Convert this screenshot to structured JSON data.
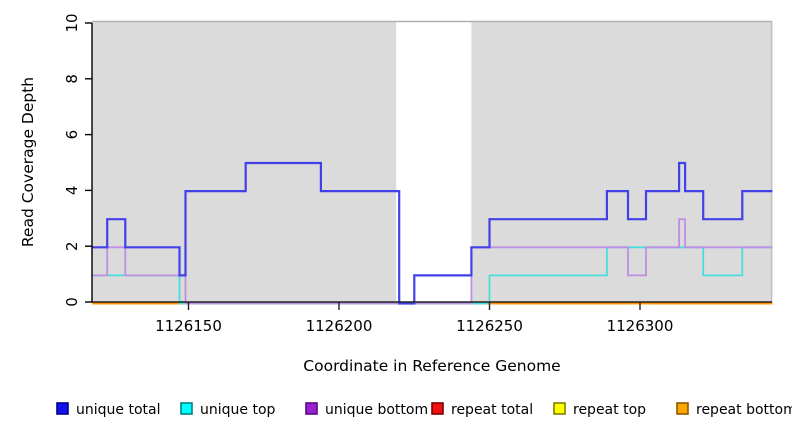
{
  "y_axis": {
    "label": "Read Coverage Depth",
    "ticks": [
      0,
      2,
      4,
      6,
      8,
      10
    ],
    "min": 0,
    "max": 10
  },
  "x_axis": {
    "label": "Coordinate in Reference Genome",
    "ticks": [
      1126150,
      1126200,
      1126250,
      1126300
    ],
    "min": 1126118,
    "max": 1126344
  },
  "legend": {
    "items": [
      {
        "label": "unique total",
        "color": "#1111EE",
        "border": "#000090"
      },
      {
        "label": "unique top",
        "color": "#00FFFF",
        "border": "#008080"
      },
      {
        "label": "unique bottom",
        "color": "#9A1FD0",
        "border": "#570A86"
      },
      {
        "label": "repeat total",
        "color": "#EE1111",
        "border": "#800000"
      },
      {
        "label": "repeat top",
        "color": "#FFFF00",
        "border": "#808000"
      },
      {
        "label": "repeat bottom",
        "color": "#FFA500",
        "border": "#8B5A00"
      }
    ]
  },
  "chart_data": {
    "type": "line",
    "step": true,
    "title": "",
    "xlabel": "Coordinate in Reference Genome",
    "ylabel": "Read Coverage Depth",
    "xlim": [
      1126118,
      1126344
    ],
    "ylim": [
      0,
      10
    ],
    "grid": false,
    "legend_position": "bottom",
    "background_color": "#DBDBDB",
    "background_regions": [
      {
        "from": 1126118,
        "to": 1126219
      },
      {
        "from": 1126244,
        "to": 1126344
      }
    ],
    "gap_region": {
      "from": 1126219,
      "to": 1126244
    },
    "series": [
      {
        "name": "unique total",
        "color_pure": "#1111EE",
        "render_color": "#4340E8",
        "segments": [
          [
            1126118,
            1126123,
            2
          ],
          [
            1126123,
            1126129,
            3
          ],
          [
            1126129,
            1126147,
            2
          ],
          [
            1126147,
            1126149,
            1
          ],
          [
            1126149,
            1126169,
            4
          ],
          [
            1126169,
            1126194,
            5
          ],
          [
            1126194,
            1126220,
            4
          ],
          [
            1126220,
            1126225,
            0
          ],
          [
            1126225,
            1126244,
            1
          ],
          [
            1126244,
            1126250,
            2
          ],
          [
            1126250,
            1126289,
            3
          ],
          [
            1126289,
            1126296,
            4
          ],
          [
            1126296,
            1126302,
            3
          ],
          [
            1126302,
            1126313,
            4
          ],
          [
            1126313,
            1126315,
            5
          ],
          [
            1126315,
            1126321,
            4
          ],
          [
            1126321,
            1126334,
            3
          ],
          [
            1126334,
            1126344,
            4
          ]
        ]
      },
      {
        "name": "unique top",
        "color_pure": "#00FFFF",
        "render_color": "#49DEDA",
        "segments": [
          [
            1126118,
            1126147,
            1
          ],
          [
            1126147,
            1126250,
            0
          ],
          [
            1126250,
            1126289,
            1
          ],
          [
            1126289,
            1126321,
            2
          ],
          [
            1126321,
            1126334,
            1
          ],
          [
            1126334,
            1126344,
            2
          ]
        ]
      },
      {
        "name": "unique bottom",
        "color_pure": "#9A1FD0",
        "render_color": "#BE8FE3",
        "segments": [
          [
            1126118,
            1126123,
            1
          ],
          [
            1126123,
            1126129,
            2
          ],
          [
            1126129,
            1126149,
            1
          ],
          [
            1126149,
            1126244,
            0
          ],
          [
            1126244,
            1126296,
            2
          ],
          [
            1126296,
            1126302,
            1
          ],
          [
            1126302,
            1126313,
            2
          ],
          [
            1126313,
            1126315,
            3
          ],
          [
            1126315,
            1126344,
            2
          ]
        ]
      },
      {
        "name": "repeat total",
        "color_pure": "#EE1111",
        "render_color": "#E03030",
        "segments": [
          [
            1126118,
            1126344,
            0
          ]
        ]
      },
      {
        "name": "repeat top",
        "color_pure": "#FFFF00",
        "render_color": "#F0F000",
        "segments": [
          [
            1126118,
            1126344,
            0
          ]
        ]
      },
      {
        "name": "repeat bottom",
        "color_pure": "#FFA500",
        "render_color": "#FF8C0A",
        "segments": [
          [
            1126118,
            1126344,
            0
          ]
        ]
      }
    ],
    "zero_overlay": {
      "from": 1126147,
      "to": 1126250,
      "color": "#8FC98F",
      "note": "blended cyan/orange zero-coverage line segment"
    }
  }
}
